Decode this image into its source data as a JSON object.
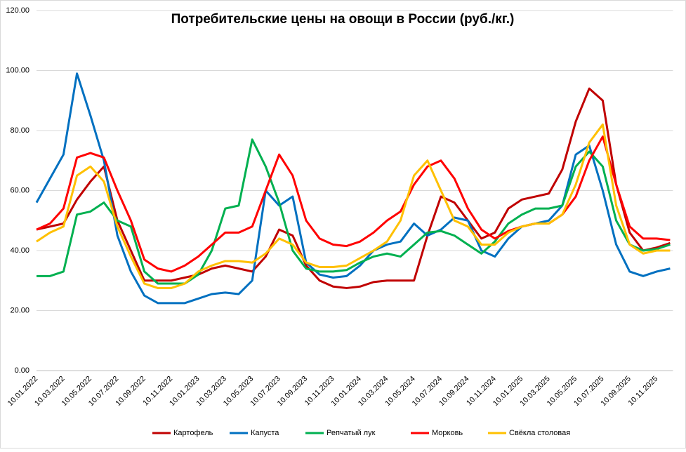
{
  "chart_data": {
    "type": "line",
    "title": "Потребительские цены на овощи в России (руб./кг.)",
    "categories": [
      "10.01.2022",
      null,
      "10.03.2022",
      null,
      "10.05.2022",
      null,
      "10.07.2022",
      null,
      "10.09.2022",
      null,
      "10.11.2022",
      null,
      "10.01.2023",
      null,
      "10.03.2023",
      null,
      "10.05.2023",
      null,
      "10.07.2023",
      null,
      "10.09.2023",
      null,
      "10.11.2023",
      null,
      "10.01.2024",
      null,
      "10.03.2024",
      null,
      "10.05.2024",
      null,
      "10.07.2024",
      null,
      "10.09.2024",
      null,
      "10.11.2024",
      null,
      "10.01.2025",
      null,
      "10.03.2025",
      null,
      "10.05.2025",
      null,
      "10.07.2025",
      null,
      "10.09.2025",
      null,
      "10.11.2025",
      null
    ],
    "series": [
      {
        "name": "Картофель",
        "color": "#c00000",
        "values": [
          47,
          48,
          49,
          57,
          63,
          68,
          50,
          40,
          30,
          30,
          30,
          31,
          32,
          34,
          35,
          34,
          33,
          38,
          47,
          45,
          35,
          30,
          28,
          27.5,
          28,
          29.5,
          30,
          30,
          30,
          45,
          58,
          56,
          50,
          44,
          46,
          54,
          57,
          58,
          59,
          67,
          83,
          94,
          90,
          62,
          46,
          40,
          41,
          42.5
        ]
      },
      {
        "name": "Капуста",
        "color": "#0070c0",
        "values": [
          56,
          64,
          72,
          99,
          85,
          70,
          45,
          33,
          25,
          22.5,
          22.5,
          22.5,
          24,
          25.5,
          26,
          25.5,
          30,
          60,
          55,
          58,
          36,
          32,
          31,
          31.5,
          35,
          40,
          42,
          43,
          49,
          45,
          47,
          51,
          50,
          40,
          38,
          44,
          48,
          49,
          50,
          55,
          72,
          75,
          60,
          42,
          33,
          31.5,
          33,
          34
        ]
      },
      {
        "name": "Репчатый лук",
        "color": "#00b050",
        "values": [
          31.5,
          31.5,
          33,
          52,
          53,
          56,
          50,
          48,
          33,
          29,
          29,
          29,
          32,
          40,
          54,
          55,
          77,
          68,
          56,
          40,
          34,
          33,
          33,
          33.5,
          36,
          38,
          39,
          38,
          42,
          46,
          46.5,
          45,
          42,
          39,
          43,
          49,
          52,
          54,
          54,
          55,
          68,
          73,
          68,
          50,
          42,
          40,
          40.5,
          42
        ]
      },
      {
        "name": "Морковь",
        "color": "#ff0000",
        "values": [
          47,
          49,
          54,
          71,
          72.5,
          71,
          60,
          50,
          37,
          34,
          33,
          35,
          38,
          42,
          46,
          46,
          48,
          60,
          72,
          65,
          50,
          44,
          42,
          41.5,
          43,
          46,
          50,
          53,
          62,
          68,
          70,
          64,
          54,
          47,
          44,
          46.5,
          48,
          49,
          49,
          52,
          58,
          70,
          78,
          62,
          48,
          44,
          44,
          43.5
        ]
      },
      {
        "name": "Свёкла столовая",
        "color": "#ffc000",
        "values": [
          43,
          46,
          48,
          65,
          68,
          63,
          48,
          38,
          29,
          27.5,
          27.5,
          29,
          33,
          35,
          36.5,
          36.5,
          36,
          39,
          44,
          42,
          36,
          34.5,
          34.5,
          35,
          37.5,
          40,
          43,
          50,
          65,
          70,
          60,
          50,
          48,
          42,
          42,
          46,
          48,
          49,
          49,
          52,
          62,
          76,
          82,
          55,
          42,
          39,
          40,
          40
        ]
      }
    ],
    "ylim": [
      0,
      120
    ],
    "yticks": [
      {
        "value": 0,
        "label": "0.00"
      },
      {
        "value": 20,
        "label": "20.00"
      },
      {
        "value": 40,
        "label": "40.00"
      },
      {
        "value": 60,
        "label": "60.00"
      },
      {
        "value": 80,
        "label": "80.00"
      },
      {
        "value": 100,
        "label": "100.00"
      },
      {
        "value": 120,
        "label": "120.00"
      }
    ],
    "grid": true,
    "legend": "bottom"
  }
}
